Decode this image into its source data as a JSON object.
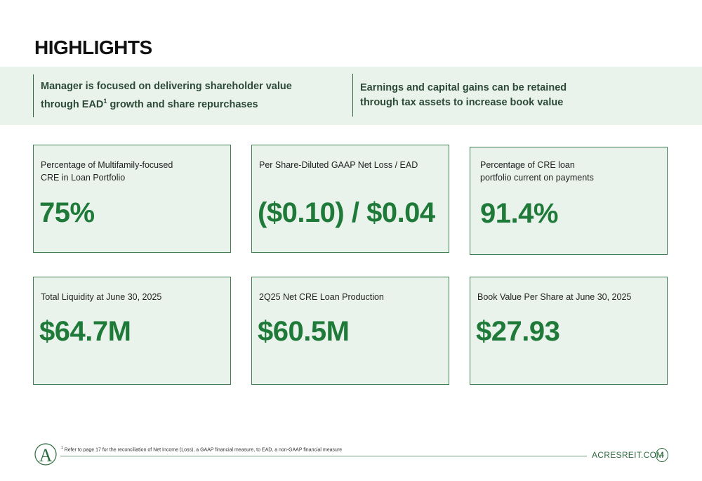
{
  "page": {
    "title": "HIGHLIGHTS",
    "page_number": "4",
    "website": "ACRESREIT.COM"
  },
  "band": {
    "left_line1": "Manager is focused on delivering shareholder value",
    "left_line2_pre": "through EAD",
    "left_line2_sup": "1",
    "left_line2_post": " growth and share repurchases",
    "right_line1": "Earnings and capital gains can be retained",
    "right_line2": "through tax assets to increase book value"
  },
  "cards": [
    {
      "label_line1": "Percentage of Multifamily-focused",
      "label_line2": "CRE in Loan Portfolio",
      "value": "75%"
    },
    {
      "label_line1": "Per Share-Diluted GAAP Net Loss / EAD",
      "label_line2": "",
      "value": "($0.10) / $0.04"
    },
    {
      "label_line1": "Percentage of CRE loan",
      "label_line2": "portfolio current on payments",
      "value": "91.4%"
    },
    {
      "label_line1": "Total Liquidity at June 30, 2025",
      "label_line2": "",
      "value": "$64.7M"
    },
    {
      "label_line1": "2Q25 Net CRE Loan Production",
      "label_line2": "",
      "value": "$60.5M"
    },
    {
      "label_line1": "Book Value Per Share at June 30, 2025",
      "label_line2": "",
      "value": "$27.93"
    }
  ],
  "footer": {
    "footnote_sup": "1",
    "footnote_text": " Refer to page 17 for the reconciliation of Net Income (Loss), a GAAP financial measure, to EAD, a non-GAAP financial measure",
    "logo_letter": "A"
  },
  "colors": {
    "accent": "#1f7a3a",
    "band_bg": "#e9f3ec",
    "border": "#3f7d52"
  }
}
